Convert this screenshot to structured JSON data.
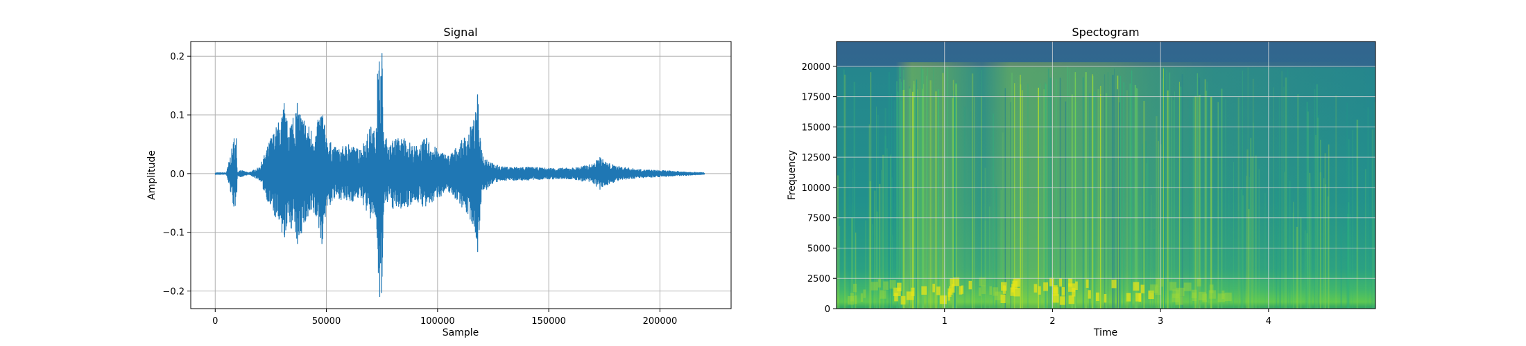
{
  "chart_data": [
    {
      "type": "line",
      "title": "Signal",
      "xlabel": "Sample",
      "ylabel": "Amplitude",
      "xlim": [
        -11000,
        232000
      ],
      "ylim": [
        -0.23,
        0.225
      ],
      "xticks": [
        0,
        50000,
        100000,
        150000,
        200000
      ],
      "xtick_labels": [
        "0",
        "50000",
        "100000",
        "150000",
        "200000"
      ],
      "yticks": [
        -0.2,
        -0.1,
        0.0,
        0.1,
        0.2
      ],
      "ytick_labels": [
        "−0.2",
        "−0.1",
        "0.0",
        "0.1",
        "0.2"
      ],
      "grid": true,
      "color": "#1f77b4",
      "series": [
        {
          "x": [
            0,
            5000,
            8000,
            8500,
            9000,
            9500,
            10000,
            11000,
            15000,
            20000,
            25000,
            30000,
            31000,
            32000,
            35000,
            37000,
            40000,
            45000,
            48000,
            50000,
            55000,
            60000,
            65000,
            70000,
            72000,
            73000,
            74000,
            75000,
            76000,
            77000,
            78000,
            80000,
            85000,
            90000,
            95000,
            100000,
            105000,
            110000,
            115000,
            117000,
            118000,
            119000,
            120000,
            125000,
            130000,
            140000,
            150000,
            160000,
            170000,
            173000,
            175000,
            180000,
            190000,
            200000,
            210000,
            220000
          ],
          "y": [
            0.0,
            0.0,
            -0.05,
            0.06,
            -0.055,
            0.06,
            0.0,
            0.005,
            0.0,
            0.01,
            0.06,
            -0.1,
            0.12,
            -0.09,
            0.095,
            -0.12,
            0.09,
            -0.07,
            -0.12,
            0.06,
            0.04,
            0.05,
            0.04,
            0.08,
            -0.07,
            0.17,
            -0.21,
            0.205,
            -0.05,
            0.06,
            0.04,
            -0.06,
            0.06,
            -0.045,
            0.06,
            -0.04,
            0.03,
            -0.05,
            0.08,
            -0.1,
            0.135,
            -0.08,
            0.035,
            0.015,
            0.01,
            0.01,
            0.008,
            0.008,
            0.015,
            0.028,
            -0.02,
            0.012,
            0.006,
            0.004,
            0.002,
            0.0
          ]
        }
      ]
    },
    {
      "type": "heatmap",
      "title": "Spectogram",
      "xlabel": "Time",
      "ylabel": "Frequency",
      "xlim": [
        0.0,
        4.99
      ],
      "ylim": [
        0,
        22050
      ],
      "xticks": [
        1,
        2,
        3,
        4
      ],
      "xtick_labels": [
        "1",
        "2",
        "3",
        "4"
      ],
      "yticks": [
        0,
        2500,
        5000,
        7500,
        10000,
        12500,
        15000,
        17500,
        20000
      ],
      "ytick_labels": [
        "0",
        "2500",
        "5000",
        "7500",
        "10000",
        "12500",
        "15000",
        "17500",
        "20000"
      ],
      "grid": true,
      "colormap": "viridis"
    }
  ]
}
